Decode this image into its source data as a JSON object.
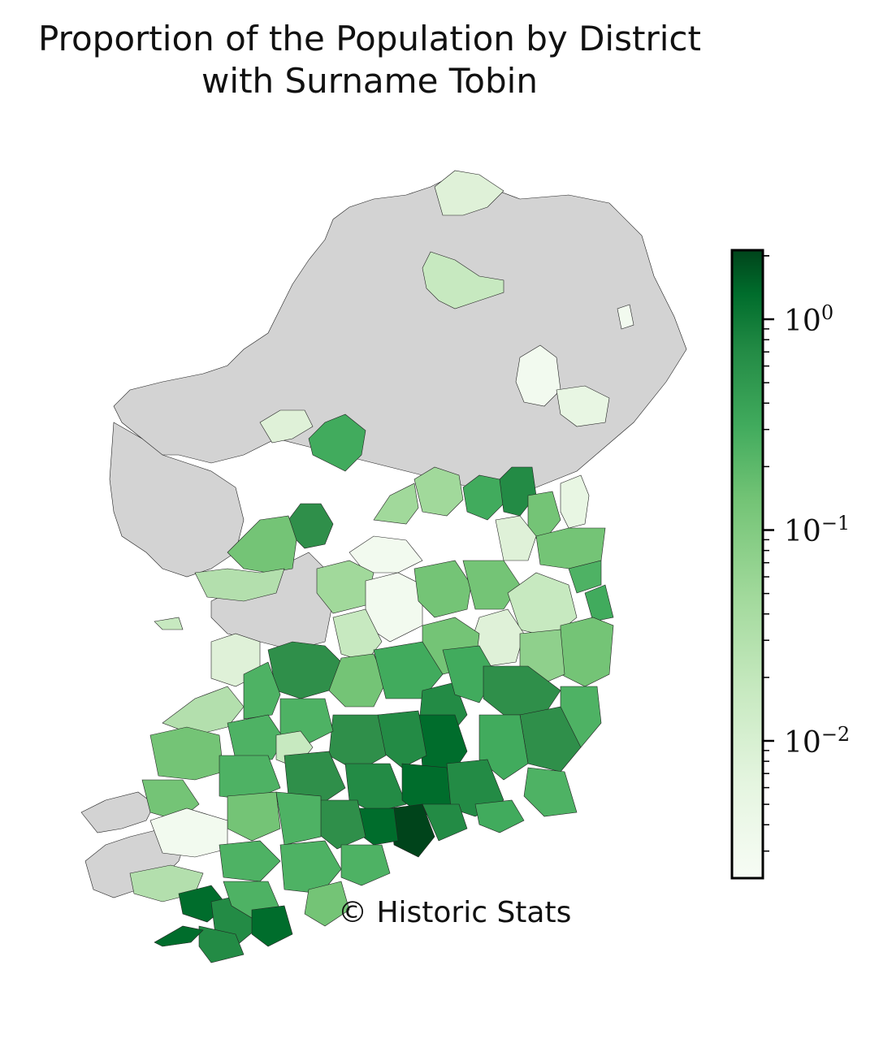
{
  "title": {
    "line1": "Proportion of the Population by District",
    "line2": "with Surname Tobin"
  },
  "copyright": "© Historic Stats",
  "colorbar": {
    "scale": "log",
    "colormap": "Greens",
    "min_color": "#f7fcf5",
    "max_color": "#00441b",
    "ticks": [
      {
        "label": "10^0",
        "base": "10",
        "exp": "0",
        "value": 1
      },
      {
        "label": "10^-1",
        "base": "10",
        "exp": "−1",
        "value": 0.1
      },
      {
        "label": "10^-2",
        "base": "10",
        "exp": "−2",
        "value": 0.01
      }
    ]
  },
  "map": {
    "no_data_color": "#d3d3d3",
    "pattern": "higher proportions concentrated in the south-east; north and west mostly no data"
  }
}
